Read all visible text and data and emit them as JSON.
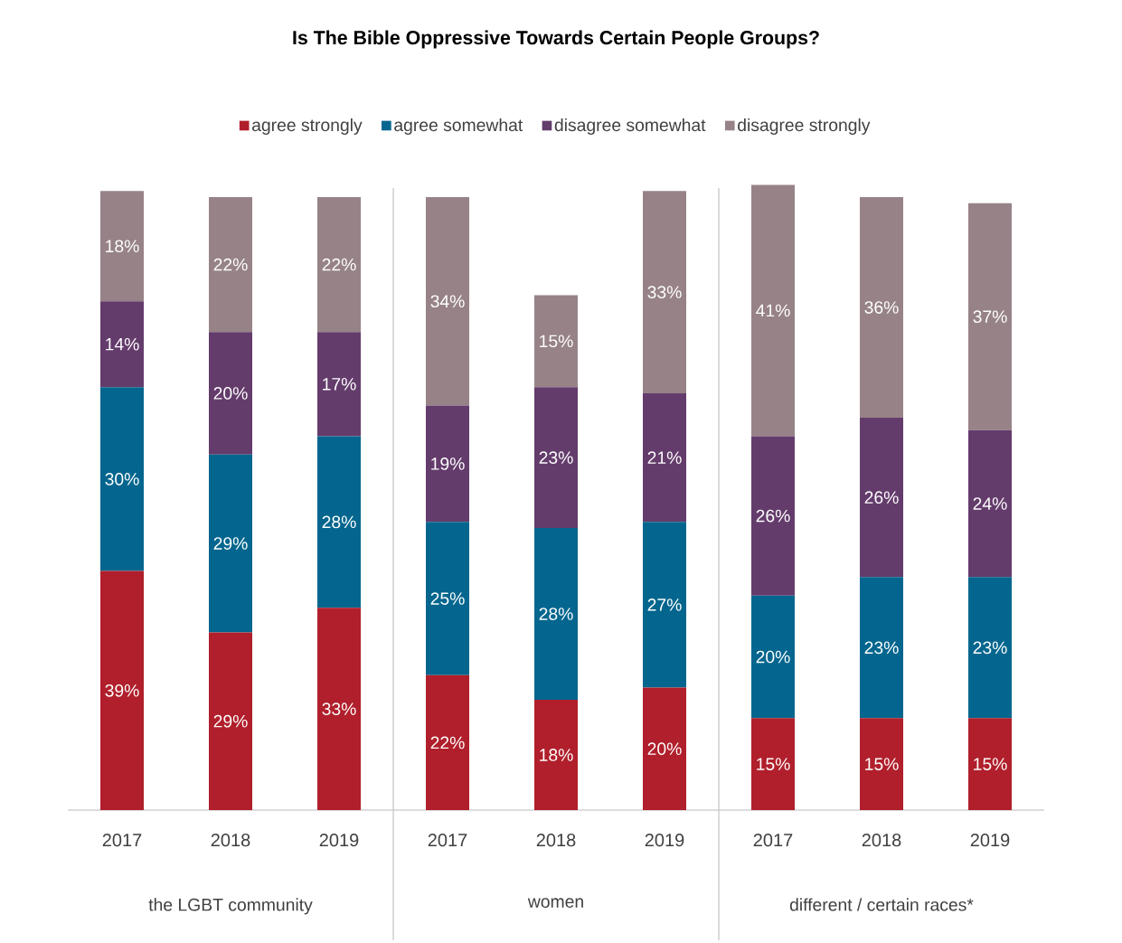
{
  "chart_data": [
    {
      "type": "bar",
      "title": "Is The Bible Oppressive Towards Certain People Groups?",
      "xlabel": "the LGBT community",
      "categories": [
        "2017",
        "2018",
        "2019"
      ],
      "stacked": true,
      "legend": "top",
      "series": [
        {
          "name": "agree strongly",
          "color": "#b01f2b",
          "values": [
            39,
            29,
            33
          ],
          "value_labels": [
            "39%",
            "29%",
            "33%"
          ]
        },
        {
          "name": "agree somewhat",
          "color": "#04668e",
          "values": [
            30,
            29,
            28
          ],
          "value_labels": [
            "30%",
            "29%",
            "28%"
          ]
        },
        {
          "name": "disagree somewhat",
          "color": "#643c6c",
          "values": [
            14,
            20,
            17
          ],
          "value_labels": [
            "14%",
            "20%",
            "17%"
          ]
        },
        {
          "name": "disagree strongly",
          "color": "#978387",
          "values": [
            18,
            22,
            22
          ],
          "value_labels": [
            "18%",
            "22%",
            "22%"
          ]
        }
      ]
    },
    {
      "type": "bar",
      "xlabel": "women",
      "categories": [
        "2017",
        "2018",
        "2019"
      ],
      "stacked": true,
      "series": [
        {
          "color": "#b01f2b",
          "values": [
            22,
            18,
            20
          ],
          "value_labels": [
            "22%",
            "18%",
            "20%"
          ]
        },
        {
          "color": "#04668e",
          "values": [
            25,
            28,
            27
          ],
          "value_labels": [
            "25%",
            "28%",
            "27%"
          ]
        },
        {
          "color": "#643c6c",
          "values": [
            19,
            23,
            21
          ],
          "value_labels": [
            "19%",
            "23%",
            "21%"
          ]
        },
        {
          "color": "#978387",
          "values": [
            34,
            15,
            33
          ],
          "value_labels": [
            "34%",
            "15%",
            "33%"
          ]
        }
      ]
    },
    {
      "type": "bar",
      "xlabel": "different / certain races*",
      "categories": [
        "2017",
        "2018",
        "2019"
      ],
      "stacked": true,
      "series": [
        {
          "color": "#b01f2b",
          "values": [
            15,
            15,
            15
          ],
          "value_labels": [
            "15%",
            "15%",
            "15%"
          ]
        },
        {
          "color": "#04668e",
          "values": [
            20,
            23,
            23
          ],
          "value_labels": [
            "20%",
            "23%",
            "23%"
          ]
        },
        {
          "color": "#643c6c",
          "values": [
            26,
            26,
            24
          ],
          "value_labels": [
            "26%",
            "26%",
            "24%"
          ]
        },
        {
          "color": "#978387",
          "values": [
            41,
            36,
            37
          ],
          "value_labels": [
            "41%",
            "36%",
            "37%"
          ]
        }
      ]
    }
  ]
}
